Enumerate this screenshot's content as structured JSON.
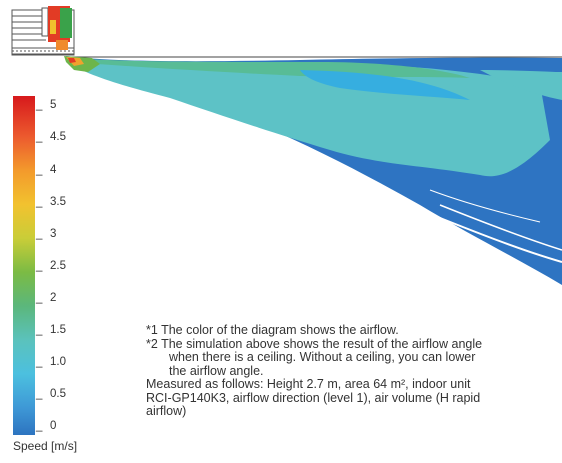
{
  "legend": {
    "title": "Speed [m/s]",
    "ticks": [
      "5",
      "4.5",
      "4",
      "3.5",
      "3",
      "2.5",
      "2",
      "1.5",
      "1.0",
      "0.5",
      "0"
    ],
    "colors": [
      "#d7191c",
      "#e9432a",
      "#f08a2c",
      "#f4b82c",
      "#e2d234",
      "#a4c93e",
      "#6bb848",
      "#56b68f",
      "#5cc4c9",
      "#2fb2e6",
      "#3a8bd0",
      "#2f79c4"
    ]
  },
  "notes": {
    "note1": "*1 The color of the diagram shows the airflow.",
    "note2_line1": "*2 The simulation above shows the result of the airflow angle",
    "note2_line2": "when there is a ceiling. Without a ceiling, you can lower",
    "note2_line3": "the airflow angle.",
    "measured_line1": "Measured as follows: Height 2.7 m, area 64 m², indoor unit",
    "measured_line2": "RCI-GP140K3, airflow direction (level 1), air volume (H rapid",
    "measured_line3": "airflow)"
  }
}
